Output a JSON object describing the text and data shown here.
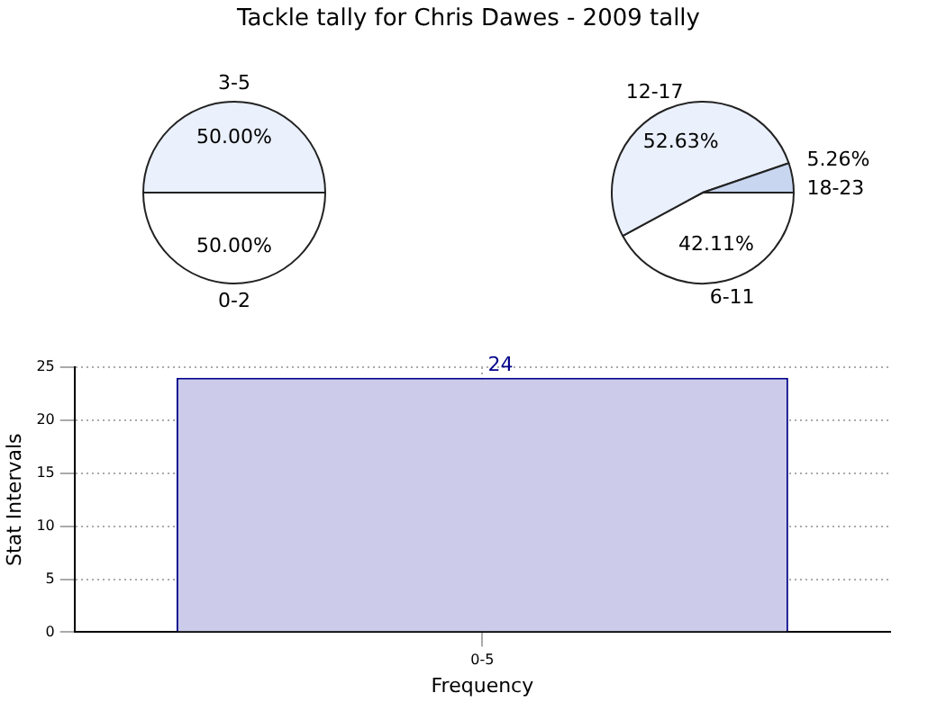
{
  "chart_data": [
    {
      "type": "pie",
      "title": "Tackle tally for Chris Dawes - 2009 tally",
      "categories": [
        "0-2",
        "3-5"
      ],
      "values": [
        50,
        50
      ],
      "value_labels": [
        "50.00%",
        "50.00%"
      ],
      "colors": [
        "#ffffff",
        "#eaf0fc"
      ]
    },
    {
      "type": "pie",
      "categories": [
        "6-11",
        "12-17",
        "18-23"
      ],
      "values": [
        42.11,
        52.63,
        5.26
      ],
      "value_labels": [
        "42.11%",
        "52.63%",
        "5.26%"
      ],
      "colors": [
        "#ffffff",
        "#eaf0fc",
        "#c8d6f0"
      ]
    },
    {
      "type": "bar",
      "categories": [
        "0-5"
      ],
      "values": [
        24
      ],
      "color": "#ccccea",
      "xlabel": "Frequency",
      "ylabel": "Stat Intervals",
      "ylim": [
        0,
        25
      ],
      "yticks": [
        0,
        5,
        10,
        15,
        20,
        25
      ],
      "grid": true,
      "data_labels": true
    }
  ]
}
